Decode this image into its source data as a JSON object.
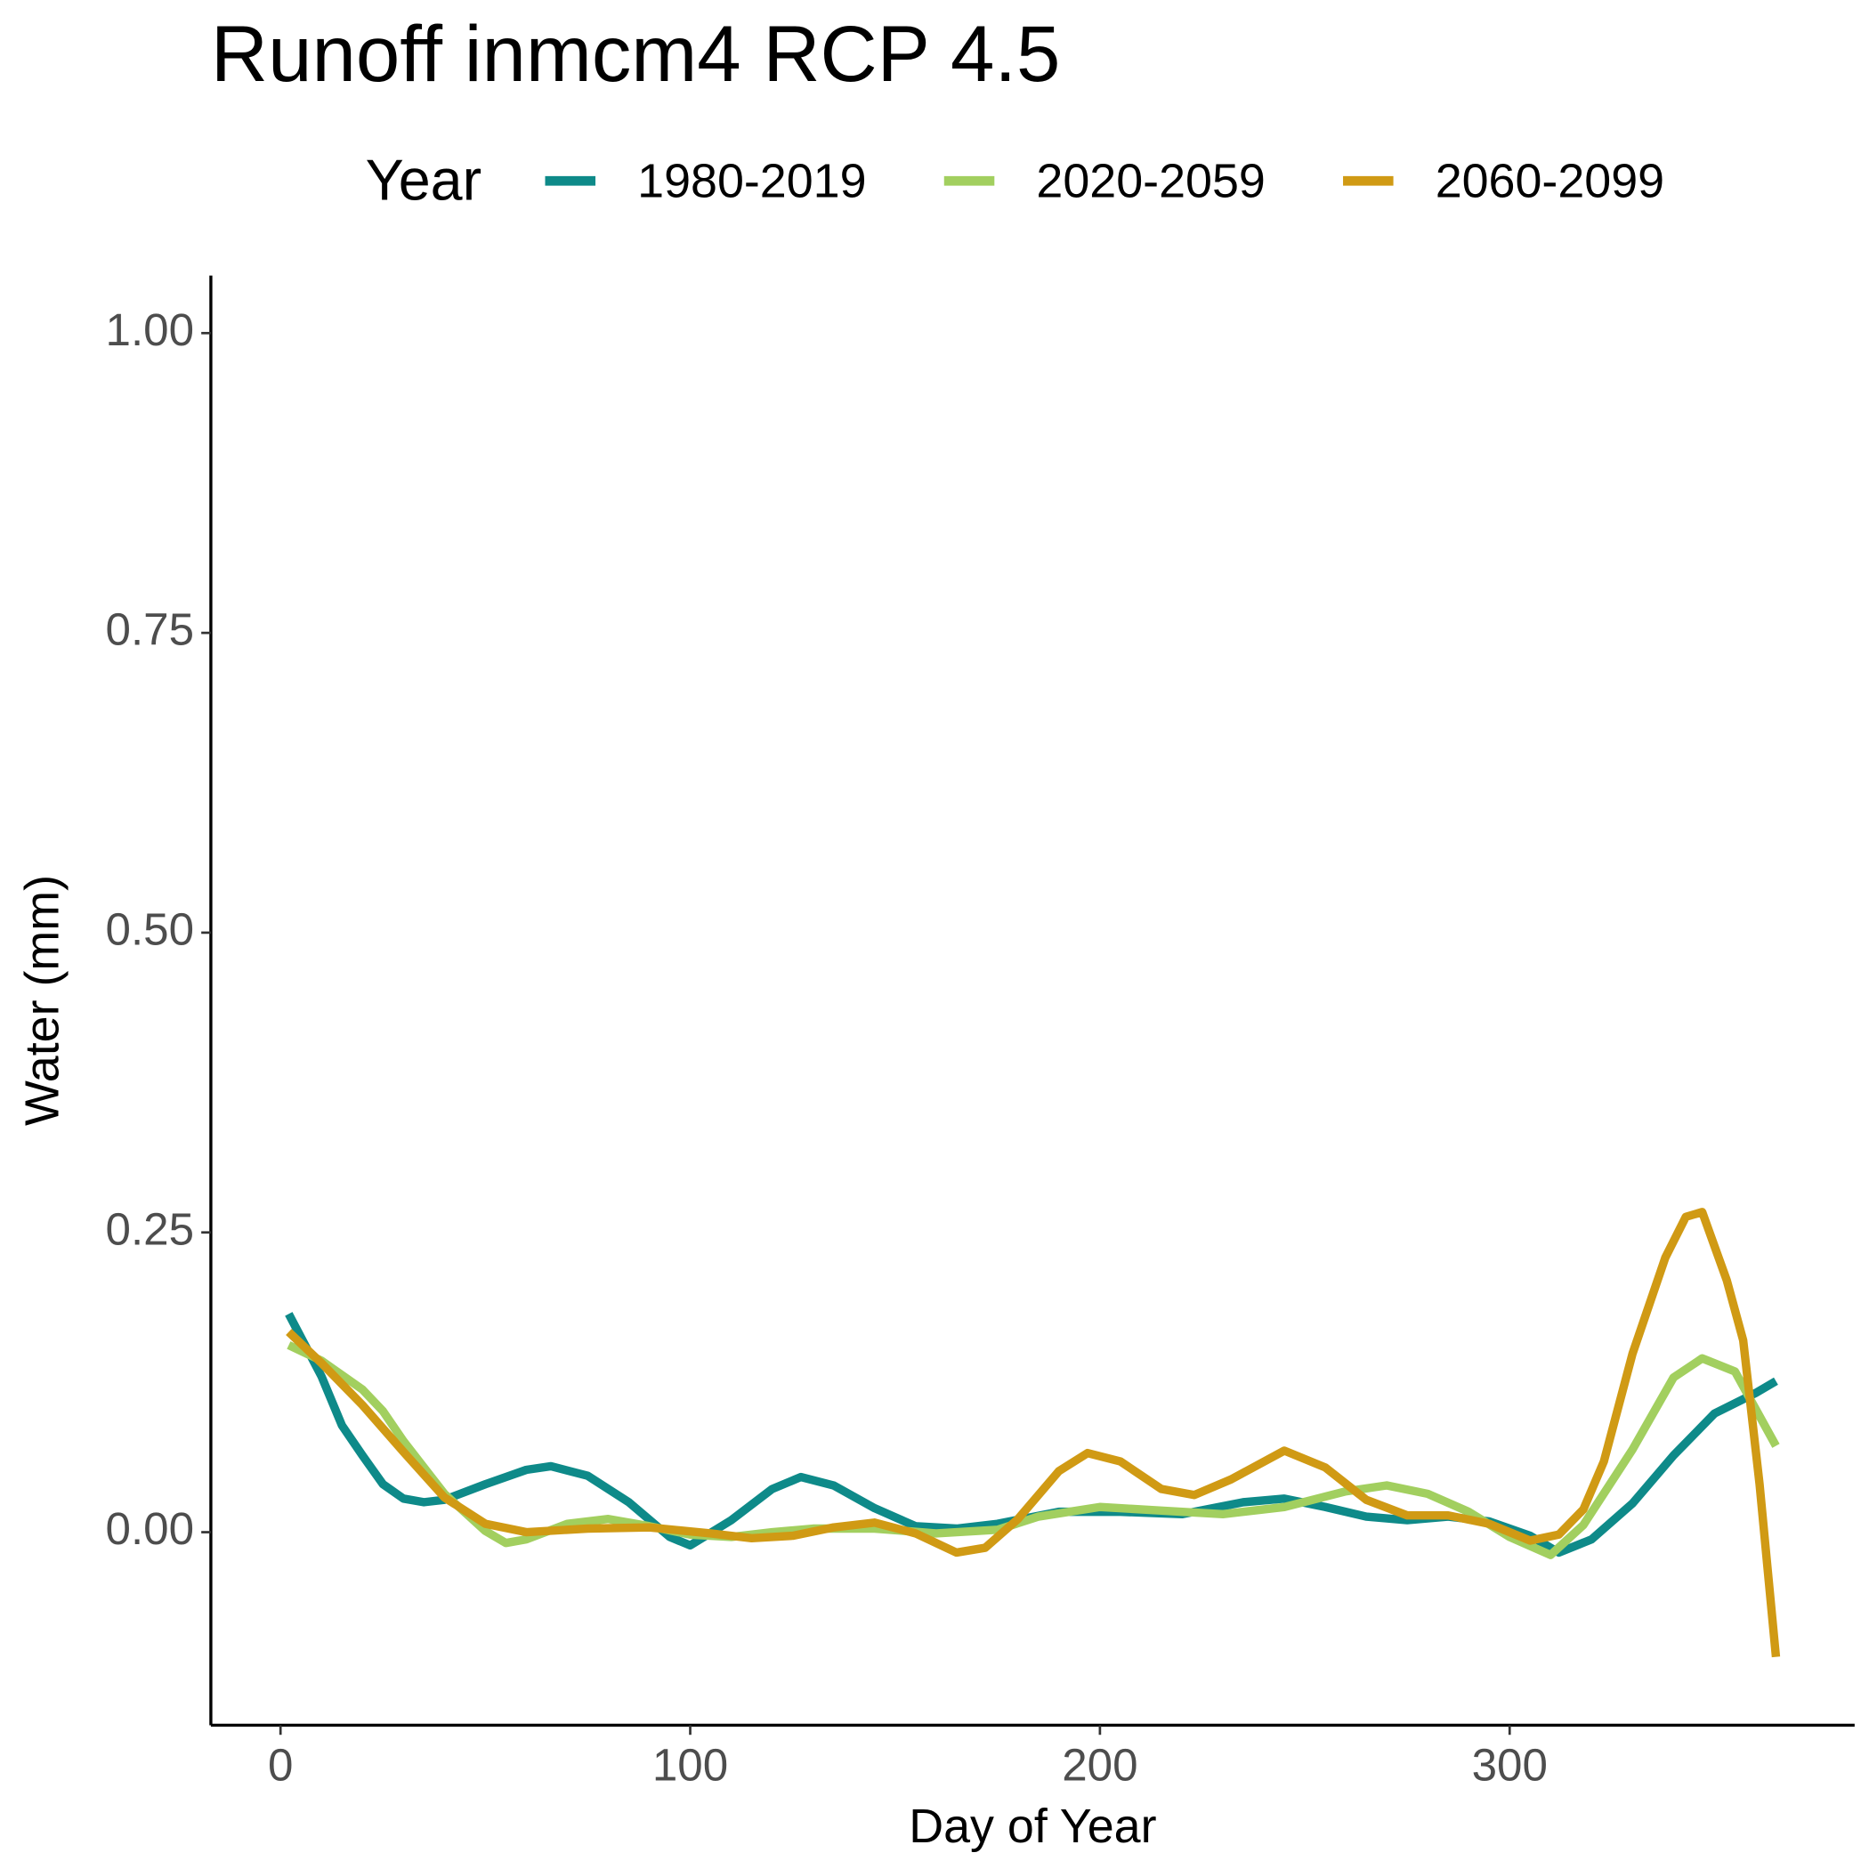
{
  "chart_data": {
    "type": "line",
    "title": "Runoff inmcm4 RCP 4.5",
    "xlabel": "Day of Year",
    "ylabel": "Water (mm)",
    "legend_title": "Year",
    "legend": "top",
    "xlim": [
      -17,
      384.2
    ],
    "ylim": [
      -0.161,
      1.048
    ],
    "xticks": [
      0,
      100,
      200,
      300
    ],
    "yticks": [
      {
        "value": 0,
        "label": "0.00"
      },
      {
        "value": 0.25,
        "label": "0.25"
      },
      {
        "value": 0.5,
        "label": "0.50"
      },
      {
        "value": 0.75,
        "label": "0.75"
      },
      {
        "value": 1,
        "label": "1.00"
      }
    ],
    "series": [
      {
        "name": "1980-2019",
        "color": "#0e8a89",
        "x": [
          2,
          10,
          15,
          20,
          25,
          30,
          35,
          40,
          50,
          60,
          66,
          75,
          85,
          95,
          100,
          110,
          120,
          127,
          135,
          145,
          155,
          165,
          175,
          190,
          205,
          220,
          235,
          245,
          255,
          265,
          275,
          285,
          295,
          305,
          312,
          320,
          330,
          340,
          350,
          360,
          365
        ],
        "values": [
          0.182,
          0.13,
          0.089,
          0.064,
          0.04,
          0.028,
          0.025,
          0.027,
          0.04,
          0.052,
          0.055,
          0.047,
          0.025,
          -0.004,
          -0.011,
          0.01,
          0.036,
          0.046,
          0.039,
          0.02,
          0.005,
          0.003,
          0.007,
          0.017,
          0.017,
          0.015,
          0.025,
          0.028,
          0.021,
          0.013,
          0.01,
          0.013,
          0.009,
          -0.003,
          -0.017,
          -0.006,
          0.024,
          0.064,
          0.099,
          0.116,
          0.126
        ]
      },
      {
        "name": "2020-2059",
        "color": "#a2cf5f",
        "x": [
          2,
          10,
          20,
          25,
          30,
          40,
          50,
          55,
          60,
          70,
          80,
          90,
          100,
          110,
          120,
          130,
          145,
          160,
          175,
          185,
          200,
          215,
          230,
          245,
          260,
          270,
          280,
          290,
          300,
          310,
          318,
          330,
          340,
          347,
          355,
          365
        ],
        "values": [
          0.156,
          0.143,
          0.119,
          0.101,
          0.076,
          0.032,
          0.001,
          -0.009,
          -0.006,
          0.007,
          0.011,
          0.005,
          -0.002,
          -0.004,
          0,
          0.003,
          0.003,
          -0.001,
          0.002,
          0.013,
          0.021,
          0.018,
          0.015,
          0.021,
          0.034,
          0.039,
          0.032,
          0.017,
          -0.004,
          -0.019,
          0.006,
          0.069,
          0.129,
          0.145,
          0.134,
          0.072
        ]
      },
      {
        "name": "2060-2099",
        "color": "#d09a14",
        "x": [
          2,
          10,
          20,
          30,
          40,
          50,
          60,
          75,
          90,
          105,
          115,
          125,
          135,
          145,
          155,
          165,
          172,
          180,
          190,
          197,
          205,
          215,
          223,
          232,
          245,
          255,
          265,
          275,
          285,
          295,
          305,
          312,
          318,
          323,
          330,
          338,
          343,
          347,
          353,
          357,
          361,
          365
        ],
        "values": [
          0.167,
          0.141,
          0.106,
          0.067,
          0.029,
          0.007,
          0,
          0.003,
          0.004,
          -0.001,
          -0.005,
          -0.003,
          0.004,
          0.008,
          -0.001,
          -0.017,
          -0.013,
          0.011,
          0.051,
          0.066,
          0.059,
          0.036,
          0.031,
          0.044,
          0.068,
          0.054,
          0.027,
          0.014,
          0.014,
          0.007,
          -0.007,
          -0.002,
          0.019,
          0.059,
          0.149,
          0.229,
          0.263,
          0.267,
          0.21,
          0.16,
          0.04,
          -0.104
        ]
      }
    ]
  }
}
